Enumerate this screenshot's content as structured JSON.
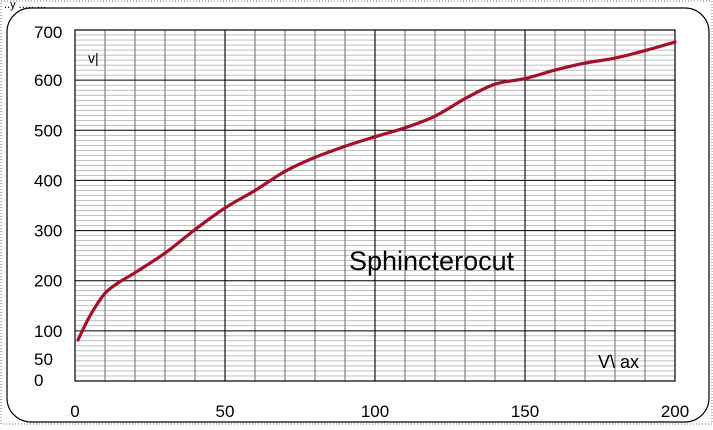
{
  "header": {
    "partial_text": "..y ..... ..."
  },
  "chart_data": {
    "type": "line",
    "xlim": [
      0,
      200
    ],
    "ylim": [
      0,
      700
    ],
    "x_ticks": [
      "0",
      "50",
      "100",
      "150",
      "200"
    ],
    "y_ticks": [
      "0",
      "50",
      "100",
      "200",
      "300",
      "400",
      "500",
      "600",
      "700"
    ],
    "y_axis_label": "v|",
    "x_axis_label": "V\\ ax",
    "annotation": "Sphincterocut",
    "grid": true,
    "series": [
      {
        "color": "#a50f2a",
        "points": [
          [
            1,
            82
          ],
          [
            5,
            130
          ],
          [
            10,
            175
          ],
          [
            15,
            198
          ],
          [
            20,
            216
          ],
          [
            30,
            255
          ],
          [
            40,
            302
          ],
          [
            50,
            345
          ],
          [
            60,
            380
          ],
          [
            70,
            418
          ],
          [
            80,
            446
          ],
          [
            90,
            468
          ],
          [
            100,
            487
          ],
          [
            110,
            505
          ],
          [
            120,
            528
          ],
          [
            130,
            563
          ],
          [
            140,
            592
          ],
          [
            150,
            603
          ],
          [
            160,
            620
          ],
          [
            170,
            634
          ],
          [
            180,
            644
          ],
          [
            190,
            659
          ],
          [
            200,
            676
          ]
        ]
      }
    ]
  }
}
